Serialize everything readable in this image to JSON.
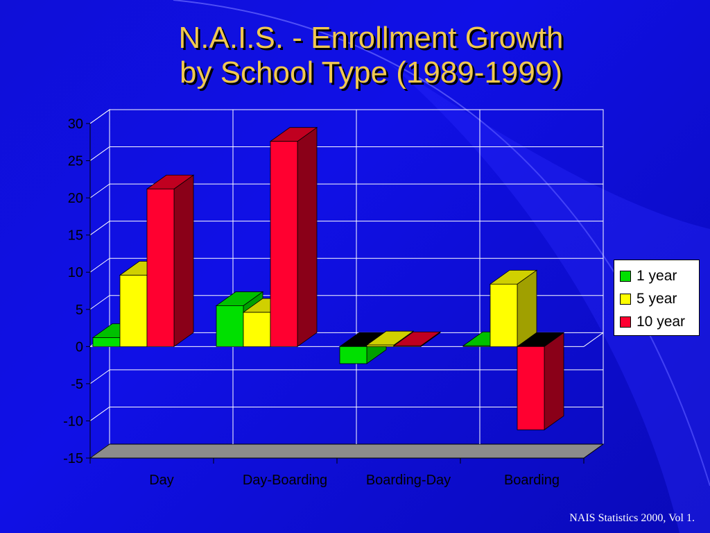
{
  "slide": {
    "title_line1": "N.A.I.S. - Enrollment Growth",
    "title_line2": "by School Type (1989-1999)",
    "source": "NAIS Statistics 2000, Vol 1."
  },
  "colors": {
    "background": "#1010e6",
    "title": "#f0c850",
    "series": [
      "#00e000",
      "#ffff00",
      "#ff0030"
    ]
  },
  "chart_data": {
    "type": "bar",
    "style": "3d-clustered-column",
    "categories": [
      "Day",
      "Day-Boarding",
      "Boarding-Day",
      "Boarding"
    ],
    "series": [
      {
        "name": "1 year",
        "values": [
          1.2,
          5.5,
          -2.3,
          0.1
        ]
      },
      {
        "name": "5 year",
        "values": [
          9.6,
          4.6,
          0.2,
          8.4
        ]
      },
      {
        "name": "10 year",
        "values": [
          21.2,
          27.6,
          0.1,
          -11.2
        ]
      }
    ],
    "ylim": [
      -15,
      30
    ],
    "yticks": [
      30,
      25,
      20,
      15,
      10,
      5,
      0,
      -5,
      -10,
      -15
    ],
    "grid": true,
    "legend_position": "right"
  }
}
